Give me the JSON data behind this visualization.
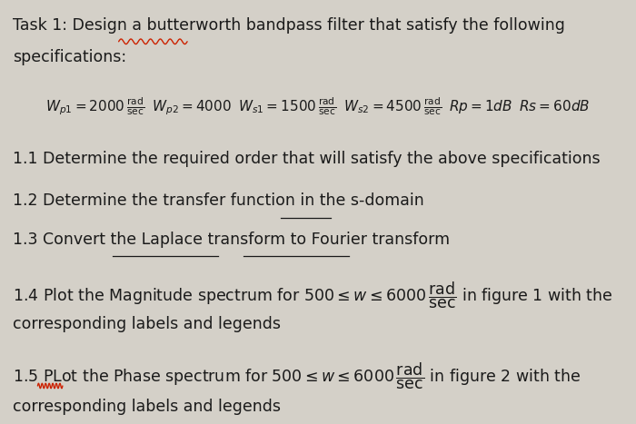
{
  "bg_color": "#d4d0c8",
  "text_color": "#1a1a1a",
  "title_line1": "Task 1: Design a butterworth bandpass filter that satisfy the following",
  "title_line2": "specifications:",
  "item11": "1.1 Determine the required order that will satisfy the above specifications",
  "item12": "1.2 Determine the transfer function in the s-domain",
  "item13": "1.3 Convert the Laplace transform to Fourier transform",
  "item14b": "corresponding labels and legends",
  "item15b": "corresponding labels and legends",
  "figsize": [
    7.0,
    4.67
  ],
  "dpi": 100,
  "fontsize": 12.5,
  "fontsize_specs": 11.0
}
